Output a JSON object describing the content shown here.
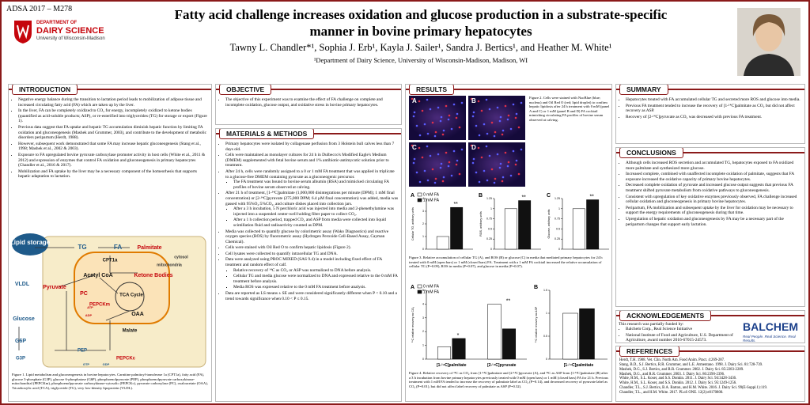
{
  "header": {
    "code": "ADSA 2017 – M278",
    "logo": [
      "DEPARTMENT OF",
      "DAIRY SCIENCE",
      "University of Wisconsin-Madison"
    ],
    "title": "Fatty acid challenge increases oxidation and glucose production in a substrate-specific manner in bovine primary hepatocytes",
    "authors": "Tawny L. Chandler*¹, Sophia J. Erb¹, Kayla J. Sailer¹, Sandra J. Bertics¹, and Heather M. White¹",
    "affiliation": "¹Department of Dairy Science, University of Wisconsin-Madison, Madison, WI"
  },
  "introduction": {
    "heading": "INTRODUCTION",
    "items": [
      "Negative energy balance during the transition to lactation period leads to mobilization of adipose tissue and increased circulating fatty acid (FA) which are taken up by the liver.",
      "In the liver, FA can be completely oxidized to CO₂ for energy, incompletely oxidized to ketone bodies (quantified as acid-soluble products; ASP), or re-esterified into triglycerides (TG) for storage or export (Figure 1).",
      "Previous data suggest that FA uptake and hepatic TG accumulation diminish hepatic function by limiting FA oxidation and gluconeogenesis (Mashek and Grummer, 2003), and contribute to the development of metabolic disorders peripartum (Herdt, 1988).",
      "However, subsequent work demonstrated that some FA may increase hepatic gluconeogenesis (Stang et al., 1998; Mashek et al., 2002 & 2003).",
      "Exposure to FA upregulated bovine pyruvate carboxylase promoter activity in host cells (White et al., 2011 & 2012) and expression of enzymes that control FA oxidation and gluconeogenesis in primary hepatocytes (Chandler et al., 2016 & 2017).",
      "Mobilization and FA uptake by the liver may be a necessary component of the homeorhesis that supports hepatic adaptation to lactation."
    ],
    "diagram": [
      "Lipid storage",
      "TG",
      "FA",
      "Palmitate",
      "CPT1a",
      "cytosol",
      "mitochondria",
      "VLDL",
      "Acetyl CoA",
      "Ketone Bodies",
      "Pyruvate",
      "PC",
      "TCA Cycle",
      "OAA",
      "PEPCKm",
      "Malate",
      "Glucose",
      "G6P",
      "G3P",
      "PEP",
      "PEPCKc",
      "ATP",
      "ADP",
      "GTP",
      "GDP"
    ],
    "caption": "Figure 1. Lipid metabolism and gluconeogenesis in bovine hepatocytes. Carnitine palmitoyl-transferase 1a (CPT1a), fatty acid (FA), glucose 3-phosphate (G3P), glucose 6-phosphatase (G6P), phosphoenolpyruvate (PEP), phosphoenolpyruvate carboxykinase-mitochondrial (PEPCKm), phosphoenolpyruvate carboxykinase-cytosolic (PEPCKc), pyruvate carboxylase (PC), oxaloacetate (OAA), Tricarboxylic acid (TCA), triglyceride (TG), very low-density lipoprotein (VLDL)."
  },
  "objective": {
    "heading": "OBJECTIVE",
    "items": [
      "The objective of this experiment was to examine the effect of FA challenge on complete and incomplete oxidation, glucose output, and oxidative stress in bovine primary hepatocytes."
    ]
  },
  "methods": {
    "heading": "MATERIALS & METHODS",
    "items": [
      {
        "text": "Primary hepatocytes were isolated by collagenase perfusion from 3 Holstein bull calves less than 7 days old."
      },
      {
        "text": "Cells were maintained as monolayer cultures for 24 h in Dulbecco's Modified Eagle's Medium (DMEM) supplemented with fetal bovine serum and 1% antibiotic-antimycotic solution prior to treatment."
      },
      {
        "text": "After 24 h, cells were randomly assigned to a 0 or 1 mM FA treatment that was applied in triplicate to a glucose-free DMEM containing pyruvate as a gluconeogenic precursor.",
        "sub": [
          "The FA treatment was bound to bovine serum albumin (BSA) and mimicked circulating FA profiles of bovine serum observed at calving."
        ]
      },
      {
        "text": "After 21 h of treatment, [1-¹⁴C]palmitate (1,000,000 disintegrations per minute (DPM); 1 mM final concentration) or [2-¹⁴C]pyruvate (275,000 DPM; 6.4 µM final concentration) was added, media was gassed with 95%O₂:5%CO₂, and culture dishes placed into collection jars.",
        "sub": [
          "After a 3 h incubation, 5 N perchloric acid was injected into media and 2-phenethylamine was injected into a suspended center-well holding filter paper to collect CO₂.",
          "After a 1 h collection period, trapped CO₂ and ASP from media were collected into liquid scintillation fluid and radioactivity counted as DPM."
        ]
      },
      {
        "text": "Media was collected to quantify glucose by colorimetric assay (Wako Diagnostics) and reactive oxygen species (ROS) by fluorometric assay (Hydrogen Peroxide Cell-Based Assay, Cayman Chemical)."
      },
      {
        "text": "Cells were stained with Oil Red O to confirm hepatic lipidosis (Figure 2)."
      },
      {
        "text": "Cell lysates were collected to quantify intracellular TG and DNA."
      },
      {
        "text": "Data were analyzed using PROC MIXED (SAS 9.4) in a model including fixed effect of FA treatment and random effect of calf.",
        "sub": [
          "Relative recovery of ¹⁴C as CO₂ or ASP was normalized to DNA before analysis.",
          "Cellular TG and media glucose were normalized to DNA and expressed relative to the 0 mM FA treatment before analysis.",
          "Media ROS was expressed relative to the 0 mM FA treatment before analysis."
        ]
      },
      {
        "text": "Data are reported as LS means ± SE and were considered significantly different when P < 0.10 and a trend towards significance when 0.10 < P ≤ 0.15."
      }
    ]
  },
  "results": {
    "heading": "RESULTS",
    "figure2": {
      "panels": [
        "A",
        "B",
        "C",
        "D"
      ],
      "caption": "Figure 2. Cells were stained with NucBlue (blue; nucleus) and Oil Red O (red; lipid droplet) to confirm hepatic lipidosis after 24 h treatment with 0 mM (panel A and C) or 1 mM (panel B and D) FA cocktail mimicking circulating FA profiles of bovine serum observed at calving."
    },
    "figure3": {
      "legend": [
        "0 mM FA",
        "1 mM FA"
      ],
      "colors": [
        "#ffffff",
        "#111111"
      ],
      "charts": [
        {
          "letter": "A",
          "ylabel": "Cellular TG, arbitrary units",
          "ylim": [
            0,
            4
          ],
          "yticks": [
            0,
            1,
            2,
            3,
            4
          ],
          "groups": [
            {
              "values": [
                1.0,
                3.3
              ],
              "annotation": "**"
            }
          ]
        },
        {
          "letter": "B",
          "ylabel": "ROS, arbitrary units",
          "ylim": [
            0,
            1.25
          ],
          "yticks": [
            0,
            0.25,
            0.5,
            0.75,
            1,
            1.25
          ],
          "groups": [
            {
              "values": [
                1.0,
                1.2
              ],
              "annotation": "**"
            }
          ]
        },
        {
          "letter": "C",
          "ylabel": "Glucose, arbitrary units",
          "ylim": [
            0,
            1.25
          ],
          "yticks": [
            0,
            0.25,
            0.5,
            0.75,
            1,
            1.25
          ],
          "groups": [
            {
              "values": [
                1.0,
                1.22
              ],
              "annotation": "**"
            }
          ]
        }
      ],
      "caption": "Figure 3. Relative accumulation of cellular TG (A), and ROS (B) or glucose (C) in media that mediated primary hepatocytes for 24 h treated with 0 mM (open bars) or 1 mM (closed bars) FA. Treatment with a 1 mM FA cocktail increased the relative accumulation of cellular TG (P=0.09), ROS in media (P=0.07), and glucose in media (P=0.07)."
    },
    "figure4": {
      "legend": [
        "0 mM FA",
        "1 mM FA"
      ],
      "colors": [
        "#ffffff",
        "#111111"
      ],
      "charts": [
        {
          "letter": "A",
          "ylabel": "¹⁴C relative recovery as CO₂",
          "ylim": [
            0,
            5
          ],
          "yticks": [
            0,
            1,
            2,
            3,
            4,
            5
          ],
          "groups": [
            {
              "name": "[1-¹⁴C]palmitate",
              "values": [
                0.9,
                1.5
              ],
              "annotation": "*"
            },
            {
              "name": "[2-¹⁴C]pyruvate",
              "values": [
                4.0,
                2.2
              ],
              "annotation": "**"
            }
          ]
        },
        {
          "letter": "B",
          "ylabel": "¹⁴C relative recovery as ASP",
          "ylim": [
            0,
            1.5
          ],
          "yticks": [
            0,
            0.5,
            1,
            1.5
          ],
          "groups": [
            {
              "name": "[1-¹⁴C]palmitate",
              "values": [
                1.0,
                1.1
              ]
            }
          ]
        }
      ],
      "caption": "Figure 4. Relative recovery of ¹⁴C as CO₂ from [1-¹⁴C]palmitate and [2-¹⁴C]pyruvate (A), and ¹⁴C as ASP from [1-¹⁴C]palmitate (B) after a 3 h incubation from bovine primary hepatocytes previously treated with 0 mM (open bars) or 1 mM (closed bars) FA for 21 h. Previous treatment with 1 mM FA tended to increase the recovery of palmitate label as CO₂ (P=0.14), and decreased recovery of pyruvate label as CO₂ (P=0.01), but did not affect label recovery of palmitate as ASP (P=0.32)."
    }
  },
  "summary": {
    "heading": "SUMMARY",
    "items": [
      "Hepatocytes treated with FA accumulated cellular TG and secreted more ROS and glucose into media.",
      "Previous FA treatment tended to increase the recovery of [1-¹⁴C]palmitate as CO₂ but did not affect recovery as ASP.",
      "Recovery of [2-¹⁴C]pyruvate as CO₂ was decreased with previous FA treatment."
    ]
  },
  "conclusions": {
    "heading": "CONCLUSIONS",
    "items": [
      "Although cells increased ROS secretion and accumulated TG, hepatocytes exposed to FA oxidized more palmitate and synthesized more glucose.",
      "Increased complete, combined with unaffected incomplete oxidation of palmitate, suggests that FA exposure increased the oxidative capacity of primary bovine hepatocytes.",
      "Decreased complete oxidation of pyruvate and increased glucose output suggests that previous FA treatment shifted pyruvate metabolism from oxidative pathways to gluconeogenesis.",
      "Consistent with upregulation of key oxidative enzymes previously observed, FA challenge increased cellular oxidation and gluconeogenesis in primary bovine hepatocytes.",
      "Peripartum, FA mobilization and subsequent uptake by the liver for oxidation may be necessary to support the energy requirements of gluconeogenesis during that time.",
      "Upregulation of hepatic oxidation and gluconeogenesis by FA may be a necessary part of the peripartum changes that support early lactation."
    ]
  },
  "acknowledgements": {
    "heading": "ACKNOWLEDGEMENTS",
    "intro": "This research was partially funded by:",
    "items": [
      "Balchem Corp., Real Science Initiative",
      "National Institute of Food and Agriculture, U.S. Department of Agriculture, award number 2016-67015-24573."
    ],
    "sponsor": "BALCHEM",
    "tagline": "Real People. Real Science. Real Results."
  },
  "references": {
    "heading": "REFERENCES",
    "items": [
      "Herdt, T.H. 1988. Vet. Clin. North Am. Food Anim. Pract. 4:269-287.",
      "Stang, B.D., S.J. Bertics, R.R. Grummer, and L.E. Armentano. 1998. J. Dairy Sci. 81:728-739.",
      "Mashek, D.G., S.J. Bertics, and R.R. Grummer. 2002. J. Dairy Sci. 85:2283-2289.",
      "Mashek, D.G., and R.R. Grummer. 2003. J. Dairy Sci. 86:2390-2396.",
      "White, H.M., S.L. Koser, and S.S. Donkin. 2011. J. Dairy Sci. 94:3428-3436.",
      "White, H.M., S.L. Koser, and S.S. Donkin. 2012. J. Dairy Sci. 95:1249-1256.",
      "Chandler, T.L., S.J. Bertics, B.A. Barton, and H.M. White. 2016. J. Dairy Sci. 99(E-Suppl.1):119.",
      "Chandler, T.L., and H.M. White. 2017. PLoS ONE. 12(2):e0170800."
    ]
  }
}
